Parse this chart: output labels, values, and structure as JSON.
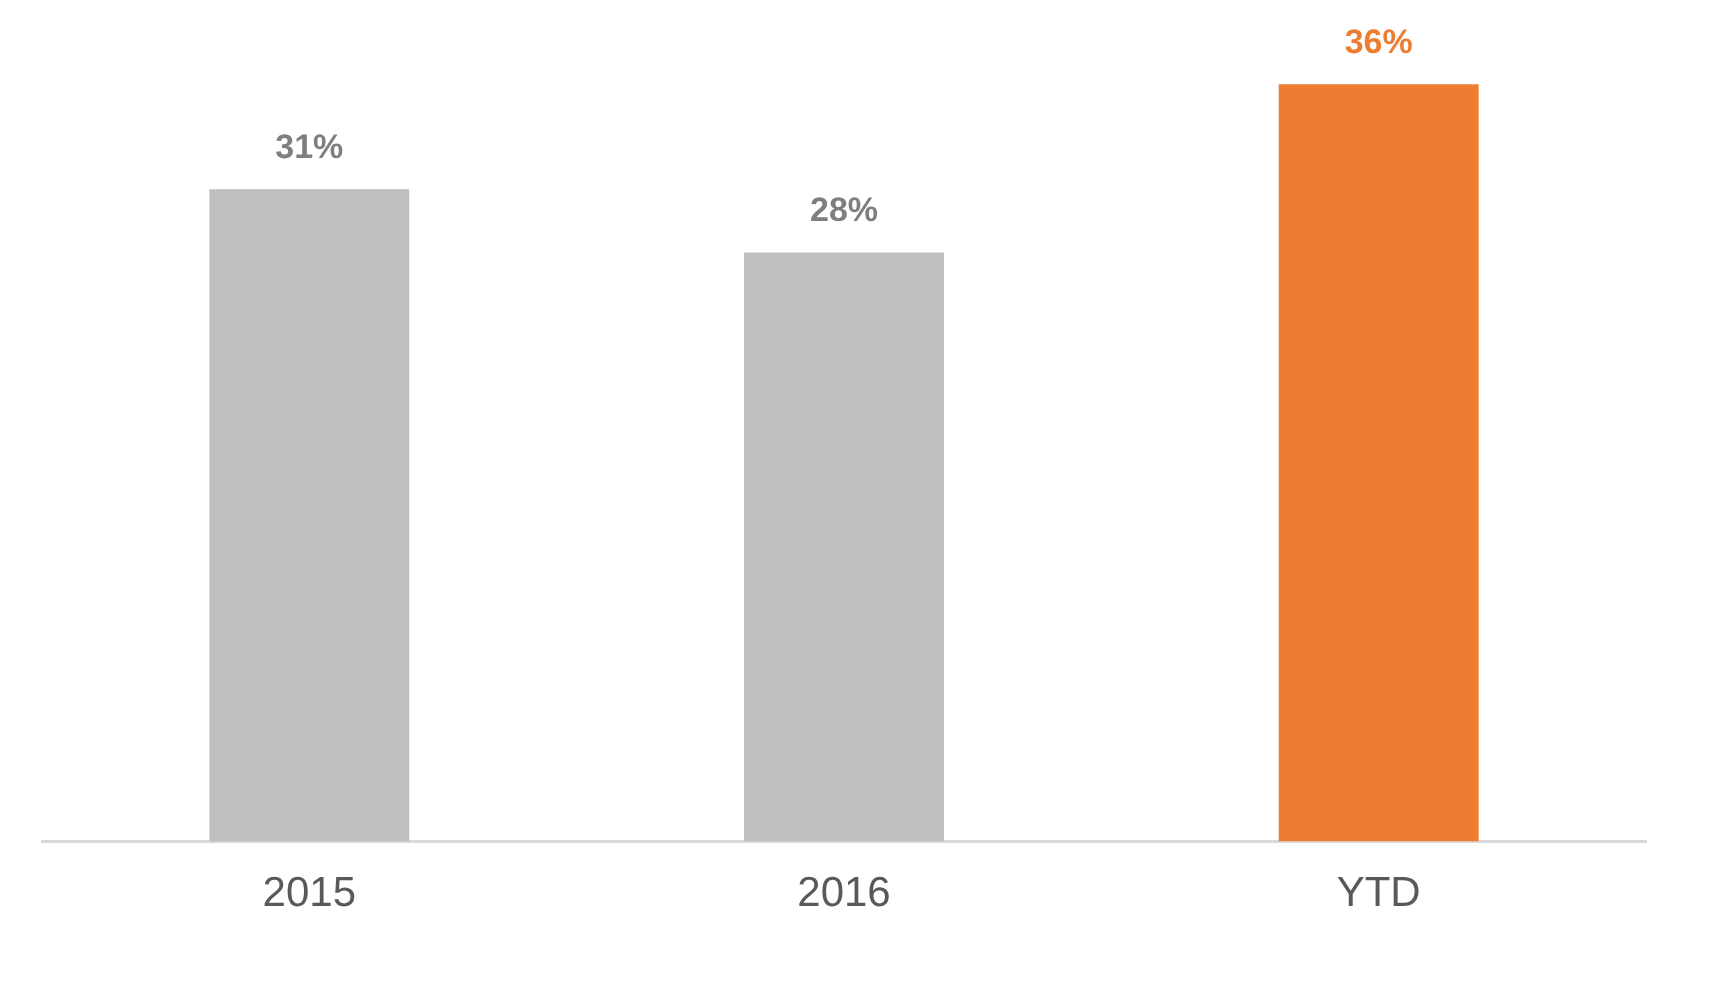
{
  "chart_data": {
    "type": "bar",
    "categories": [
      "2015",
      "2016",
      "YTD"
    ],
    "values": [
      31,
      28,
      36
    ],
    "colors": [
      "#bfbfbf",
      "#bfbfbf",
      "#ed7d31"
    ],
    "value_labels": [
      "31%",
      "28%",
      "36%"
    ],
    "grid": false,
    "legend": false,
    "tick_labels": "x"
  }
}
